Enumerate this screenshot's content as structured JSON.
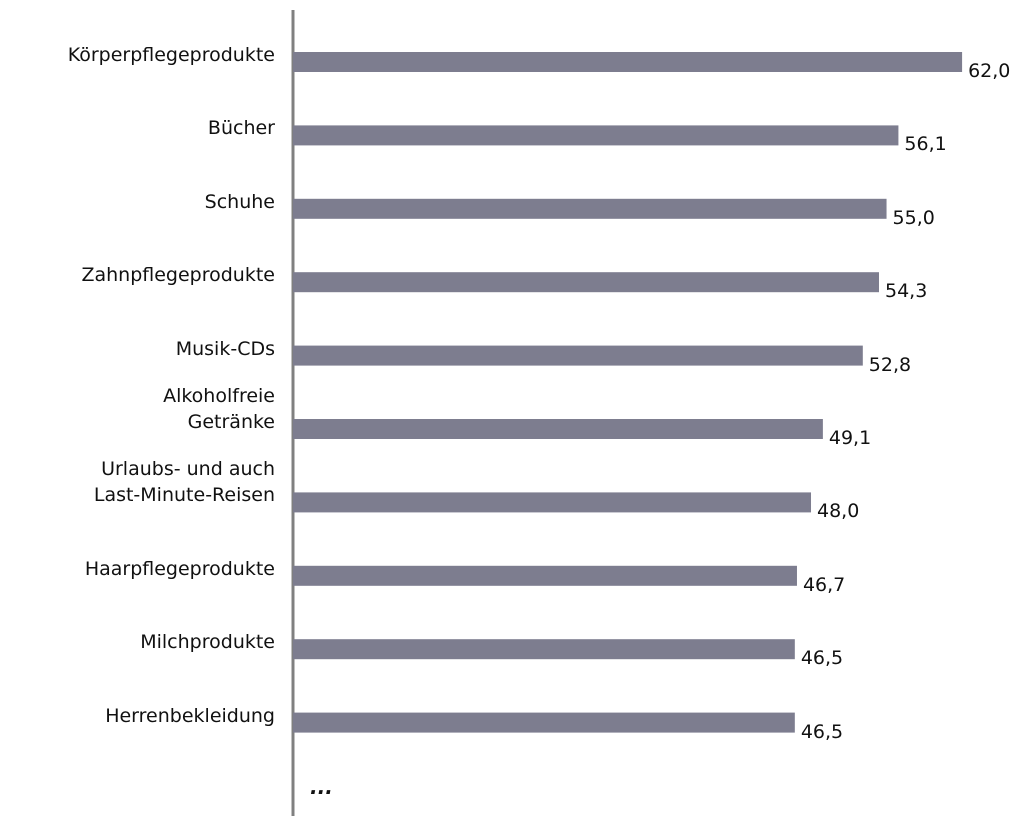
{
  "chart_data": {
    "type": "bar",
    "orientation": "horizontal",
    "categories": [
      "Körperpflegeprodukte",
      "Bücher",
      "Schuhe",
      "Zahnpflegeprodukte",
      "Musik-CDs",
      "Alkoholfreie\nGetränke",
      "Urlaubs- und auch\nLast-Minute-Reisen",
      "Haarpflegeprodukte",
      "Milchprodukte",
      "Herrenbekleidung"
    ],
    "values": [
      62.0,
      56.1,
      55.0,
      54.3,
      52.8,
      49.1,
      48.0,
      46.7,
      46.5,
      46.5
    ],
    "value_labels": [
      "62,0",
      "56,1",
      "55,0",
      "54,3",
      "52,8",
      "49,1",
      "48,0",
      "46,7",
      "46,5",
      "46,5"
    ],
    "color": "#7d7d8f",
    "xlim": [
      0,
      68.2
    ],
    "note": "..."
  }
}
